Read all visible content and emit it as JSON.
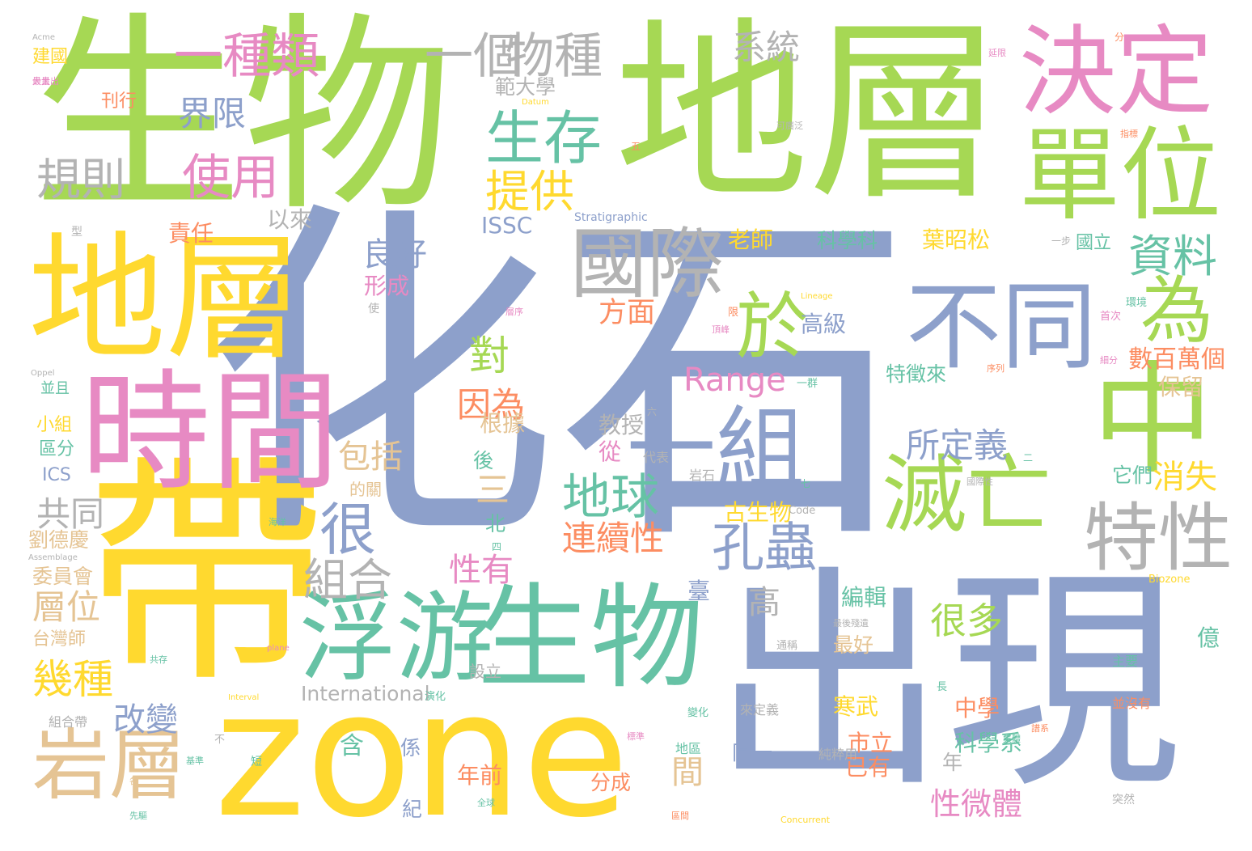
{
  "palette": {
    "green": "#a6d854",
    "blue": "#8da0cb",
    "yellow": "#ffd92f",
    "pink": "#e78ac3",
    "teal": "#66c2a5",
    "orange": "#fc8d62",
    "gray": "#b3b3b3",
    "tan": "#e5c494"
  },
  "words": [
    {
      "text": "化石",
      "color": "blue"
    },
    {
      "text": "生物",
      "color": "green"
    },
    {
      "text": "地層",
      "color": "green"
    },
    {
      "text": "帶",
      "color": "yellow"
    },
    {
      "text": "zone",
      "color": "yellow"
    },
    {
      "text": "出現",
      "color": "blue"
    },
    {
      "text": "地層",
      "color": "yellow"
    },
    {
      "text": "時間",
      "color": "pink"
    },
    {
      "text": "決定",
      "color": "pink"
    },
    {
      "text": "單位",
      "color": "green"
    },
    {
      "text": "生物",
      "color": "teal"
    },
    {
      "text": "中",
      "color": "green"
    },
    {
      "text": "浮游",
      "color": "teal"
    },
    {
      "text": "國際",
      "color": "gray"
    },
    {
      "text": "不同",
      "color": "blue"
    },
    {
      "text": "一組",
      "color": "blue"
    },
    {
      "text": "滅亡",
      "color": "green"
    },
    {
      "text": "岩層",
      "color": "tan"
    },
    {
      "text": "特性",
      "color": "gray"
    },
    {
      "text": "生存",
      "color": "teal"
    },
    {
      "text": "一個",
      "color": "gray"
    },
    {
      "text": "物種",
      "color": "gray"
    },
    {
      "text": "一種類",
      "color": "pink"
    },
    {
      "text": "為",
      "color": "green"
    },
    {
      "text": "於",
      "color": "green"
    },
    {
      "text": "很",
      "color": "blue"
    },
    {
      "text": "孔蟲",
      "color": "blue"
    },
    {
      "text": "地球",
      "color": "teal"
    },
    {
      "text": "組合",
      "color": "gray"
    },
    {
      "text": "使用",
      "color": "pink"
    },
    {
      "text": "規則",
      "color": "gray"
    },
    {
      "text": "界限",
      "color": "blue"
    },
    {
      "text": "提供",
      "color": "yellow"
    },
    {
      "text": "資料",
      "color": "teal"
    },
    {
      "text": "系統",
      "color": "gray"
    },
    {
      "text": "Range",
      "color": "pink"
    },
    {
      "text": "所定義",
      "color": "blue"
    },
    {
      "text": "對",
      "color": "green"
    },
    {
      "text": "因為",
      "color": "orange"
    },
    {
      "text": "連續性",
      "color": "orange"
    },
    {
      "text": "很多",
      "color": "green"
    },
    {
      "text": "良好",
      "color": "blue"
    },
    {
      "text": "方面",
      "color": "orange"
    },
    {
      "text": "包括",
      "color": "tan"
    },
    {
      "text": "幾種",
      "color": "yellow"
    },
    {
      "text": "改變",
      "color": "blue"
    },
    {
      "text": "層位",
      "color": "tan"
    },
    {
      "text": "共同",
      "color": "gray"
    },
    {
      "text": "消失",
      "color": "yellow"
    },
    {
      "text": "性有",
      "color": "pink"
    },
    {
      "text": "三",
      "color": "tan"
    },
    {
      "text": "高",
      "color": "gray"
    },
    {
      "text": "間",
      "color": "tan"
    },
    {
      "text": "性微體",
      "color": "pink"
    },
    {
      "text": "數百萬個",
      "color": "orange"
    },
    {
      "text": "International",
      "color": "gray"
    },
    {
      "text": "ISSC",
      "color": "blue"
    },
    {
      "text": "老師",
      "color": "yellow"
    },
    {
      "text": "葉昭松",
      "color": "yellow"
    },
    {
      "text": "科學科",
      "color": "teal"
    },
    {
      "text": "國立",
      "color": "teal"
    },
    {
      "text": "責任",
      "color": "orange"
    },
    {
      "text": "以來",
      "color": "gray"
    },
    {
      "text": "形成",
      "color": "pink"
    },
    {
      "text": "範大學",
      "color": "gray"
    },
    {
      "text": "高級",
      "color": "blue"
    },
    {
      "text": "特徵來",
      "color": "teal"
    },
    {
      "text": "保留",
      "color": "tan"
    },
    {
      "text": "教授",
      "color": "gray"
    },
    {
      "text": "根據",
      "color": "tan"
    },
    {
      "text": "後",
      "color": "teal"
    },
    {
      "text": "從",
      "color": "pink"
    },
    {
      "text": "北",
      "color": "teal"
    },
    {
      "text": "它們",
      "color": "teal"
    },
    {
      "text": "古生物",
      "color": "yellow"
    },
    {
      "text": "編輯",
      "color": "teal"
    },
    {
      "text": "最好",
      "color": "tan"
    },
    {
      "text": "寒武",
      "color": "yellow"
    },
    {
      "text": "中學",
      "color": "orange"
    },
    {
      "text": "市立",
      "color": "orange"
    },
    {
      "text": "已有",
      "color": "orange"
    },
    {
      "text": "科學系",
      "color": "teal"
    },
    {
      "text": "年前",
      "color": "orange"
    },
    {
      "text": "分成",
      "color": "orange"
    },
    {
      "text": "同一",
      "color": "blue"
    },
    {
      "text": "含",
      "color": "teal"
    },
    {
      "text": "係",
      "color": "blue"
    },
    {
      "text": "紀",
      "color": "blue"
    },
    {
      "text": "年",
      "color": "gray"
    },
    {
      "text": "臺",
      "color": "blue"
    },
    {
      "text": "億",
      "color": "teal"
    },
    {
      "text": "劉德慶",
      "color": "tan"
    },
    {
      "text": "委員會",
      "color": "tan"
    },
    {
      "text": "台灣師",
      "color": "tan"
    },
    {
      "text": "小組",
      "color": "yellow"
    },
    {
      "text": "區分",
      "color": "teal"
    },
    {
      "text": "ICS",
      "color": "blue"
    },
    {
      "text": "並且",
      "color": "teal"
    },
    {
      "text": "建國",
      "color": "yellow"
    },
    {
      "text": "刊行",
      "color": "orange"
    },
    {
      "text": "設立",
      "color": "gray"
    },
    {
      "text": "的關",
      "color": "tan"
    },
    {
      "text": "Stratigraphic",
      "color": "blue"
    },
    {
      "text": "Biozone",
      "color": "yellow"
    },
    {
      "text": "Concurrent",
      "color": "yellow"
    },
    {
      "text": "Code",
      "color": "gray"
    },
    {
      "text": "Lineage",
      "color": "yellow"
    },
    {
      "text": "Acme",
      "color": "gray"
    },
    {
      "text": "Oppel",
      "color": "gray"
    },
    {
      "text": "Assemblage",
      "color": "gray"
    },
    {
      "text": "Interval",
      "color": "yellow"
    },
    {
      "text": "Datum",
      "color": "yellow"
    },
    {
      "text": "plane",
      "color": "pink"
    },
    {
      "text": "岩石",
      "color": "gray"
    },
    {
      "text": "代表",
      "color": "gray"
    },
    {
      "text": "主要",
      "color": "teal"
    },
    {
      "text": "並沒有",
      "color": "orange"
    },
    {
      "text": "突然",
      "color": "gray"
    },
    {
      "text": "純粹用",
      "color": "gray"
    },
    {
      "text": "來定義",
      "color": "gray"
    },
    {
      "text": "地區",
      "color": "teal"
    },
    {
      "text": "組合帶",
      "color": "gray"
    },
    {
      "text": "一步",
      "color": "gray"
    },
    {
      "text": "一群",
      "color": "teal"
    },
    {
      "text": "型",
      "color": "gray"
    },
    {
      "text": "大量出",
      "color": "pink"
    },
    {
      "text": "可廣泛",
      "color": "gray"
    },
    {
      "text": "最後殘遺",
      "color": "gray"
    },
    {
      "text": "集體",
      "color": "teal"
    },
    {
      "text": "變化",
      "color": "teal"
    },
    {
      "text": "演化",
      "color": "teal"
    },
    {
      "text": "首次",
      "color": "pink"
    },
    {
      "text": "分",
      "color": "orange"
    },
    {
      "text": "五",
      "color": "orange"
    },
    {
      "text": "六",
      "color": "gray"
    },
    {
      "text": "七",
      "color": "teal"
    },
    {
      "text": "二",
      "color": "teal"
    },
    {
      "text": "四",
      "color": "teal"
    },
    {
      "text": "不",
      "color": "gray"
    },
    {
      "text": "長",
      "color": "teal"
    },
    {
      "text": "短",
      "color": "teal"
    },
    {
      "text": "各",
      "color": "tan"
    },
    {
      "text": "使",
      "color": "gray"
    },
    {
      "text": "限",
      "color": "orange"
    },
    {
      "text": "環境",
      "color": "teal"
    },
    {
      "text": "海洋",
      "color": "teal"
    },
    {
      "text": "全球",
      "color": "teal"
    },
    {
      "text": "標準",
      "color": "pink"
    },
    {
      "text": "序列",
      "color": "orange"
    },
    {
      "text": "層序",
      "color": "pink"
    },
    {
      "text": "區間",
      "color": "orange"
    },
    {
      "text": "頂峰",
      "color": "pink"
    },
    {
      "text": "基準",
      "color": "teal"
    },
    {
      "text": "共存",
      "color": "teal"
    },
    {
      "text": "延限",
      "color": "pink"
    },
    {
      "text": "譜系",
      "color": "orange"
    },
    {
      "text": "先驅",
      "color": "teal"
    },
    {
      "text": "國際性",
      "color": "gray"
    },
    {
      "text": "通稱",
      "color": "gray"
    },
    {
      "text": "最大",
      "color": "pink"
    },
    {
      "text": "細分",
      "color": "pink"
    },
    {
      "text": "指標",
      "color": "orange"
    }
  ]
}
